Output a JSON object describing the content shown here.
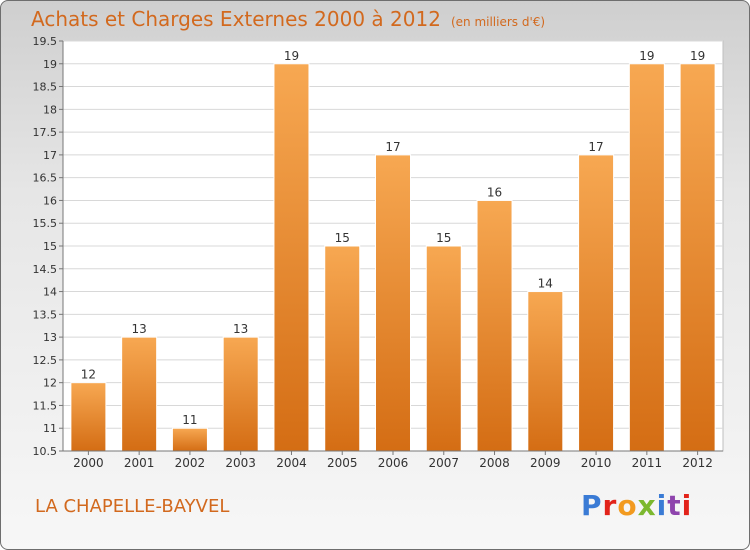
{
  "header": {
    "title": "Achats et Charges Externes 2000 à 2012",
    "unit": "(en milliers d'€)"
  },
  "footer": {
    "commune": "LA CHAPELLE-BAYVEL",
    "logo": "Proxiti",
    "logo_colors": [
      "#3a7bd5",
      "#e2231a",
      "#f29a1f",
      "#7cb82f",
      "#3a7bd5",
      "#8e44ad",
      "#e2231a"
    ]
  },
  "colors": {
    "bar_light": "#f7a852",
    "bar_dark": "#d46d14",
    "text": "#d2691e",
    "axis_text": "#333333",
    "grid": "#d8d8d8"
  },
  "chart_data": {
    "type": "bar",
    "title": "Achats et Charges Externes 2000 à 2012",
    "categories": [
      "2000",
      "2001",
      "2002",
      "2003",
      "2004",
      "2005",
      "2006",
      "2007",
      "2008",
      "2009",
      "2010",
      "2011",
      "2012"
    ],
    "values": [
      12,
      13,
      11,
      13,
      19,
      15,
      17,
      15,
      16,
      14,
      17,
      19,
      19
    ],
    "ylim": [
      10.5,
      19.5
    ],
    "yticks": [
      "10.5",
      "11",
      "11.5",
      "12",
      "12.5",
      "13",
      "13.5",
      "14",
      "14.5",
      "15",
      "15.5",
      "16",
      "16.5",
      "17",
      "17.5",
      "18",
      "18.5",
      "19",
      "19.5"
    ],
    "grid": true,
    "data_labels": true
  }
}
